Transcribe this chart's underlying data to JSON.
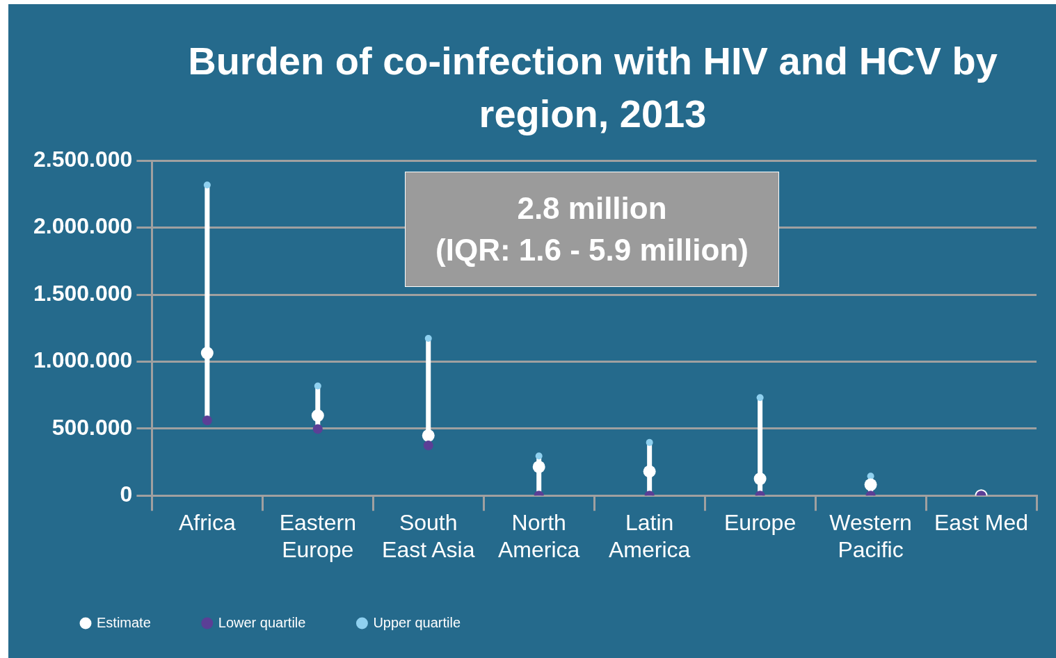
{
  "chart_data": {
    "type": "scatter",
    "title": "Burden of co-infection with HIV and HCV by region, 2013",
    "categories": [
      "Africa",
      "Eastern Europe",
      "South East Asia",
      "North America",
      "Latin America",
      "Europe",
      "Western Pacific",
      "East Med"
    ],
    "series": [
      {
        "name": "Estimate",
        "color": "#ffffff",
        "values": [
          1064000,
          597000,
          448000,
          214000,
          180000,
          125000,
          81000,
          0
        ]
      },
      {
        "name": "Lower quartile",
        "color": "#5b3f96",
        "values": [
          561000,
          497000,
          374000,
          0,
          0,
          0,
          0,
          0
        ]
      },
      {
        "name": "Upper quartile",
        "color": "#8fd0ef",
        "values": [
          2318000,
          818000,
          1173000,
          295000,
          396000,
          731000,
          145000,
          null
        ]
      }
    ],
    "ylim": [
      0,
      2500000
    ],
    "yticks": [
      0,
      {
        "value": 500000,
        "label": "500.000"
      },
      {
        "value": 1000000,
        "label": "1.000.000"
      },
      {
        "value": 1500000,
        "label": "1.500.000"
      },
      {
        "value": 2000000,
        "label": "2.000.000"
      },
      {
        "value": 2500000,
        "label": "2.500.000"
      }
    ],
    "grid": "y",
    "legend": "bottom left",
    "marker": "circle",
    "annotations": [
      "2.8 million\n(IQR: 1.6 - 5.9 million)"
    ]
  }
}
